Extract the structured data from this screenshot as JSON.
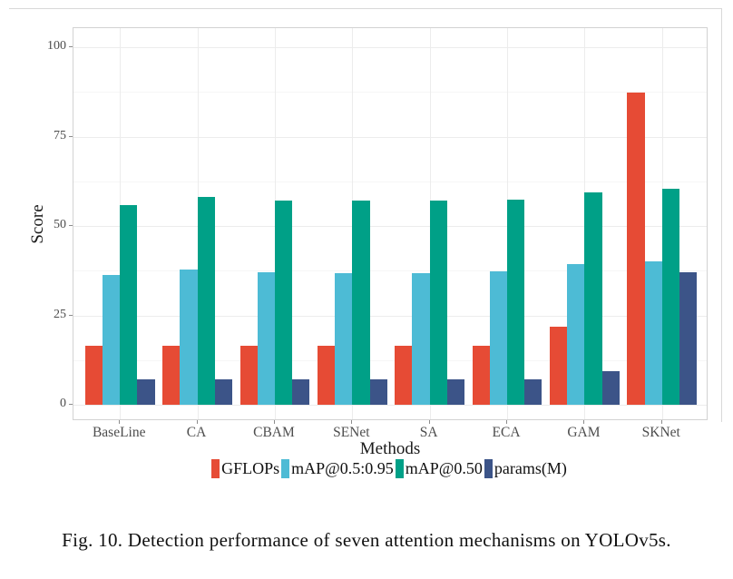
{
  "figure": {
    "caption": "Fig. 10.  Detection performance of seven attention mechanisms on YOLOv5s."
  },
  "chart_data": {
    "type": "bar",
    "grouped": true,
    "title": "",
    "xlabel": "Methods",
    "ylabel": "Score",
    "categories": [
      "BaseLine",
      "CA",
      "CBAM",
      "SENet",
      "SA",
      "ECA",
      "GAM",
      "SKNet"
    ],
    "series": [
      {
        "name": "GFLOPs",
        "color": "#E64B35",
        "values": [
          16.6,
          16.6,
          16.6,
          16.6,
          16.6,
          16.6,
          21.8,
          87.2
        ]
      },
      {
        "name": "mAP@0.5:0.95",
        "color": "#4DBBD5",
        "values": [
          36.2,
          37.7,
          37.0,
          36.9,
          36.9,
          37.3,
          39.3,
          40.1
        ]
      },
      {
        "name": "mAP@0.50",
        "color": "#00A087",
        "values": [
          55.9,
          58.0,
          57.2,
          57.0,
          57.0,
          57.4,
          59.4,
          60.4
        ]
      },
      {
        "name": "params(M)",
        "color": "#3C5488",
        "values": [
          7.1,
          7.1,
          7.1,
          7.1,
          7.1,
          7.1,
          9.4,
          37.0
        ]
      }
    ],
    "yticks": [
      0,
      25,
      50,
      75,
      100
    ],
    "ylim": [
      0,
      100
    ],
    "grid": true,
    "legend_position": "bottom"
  }
}
